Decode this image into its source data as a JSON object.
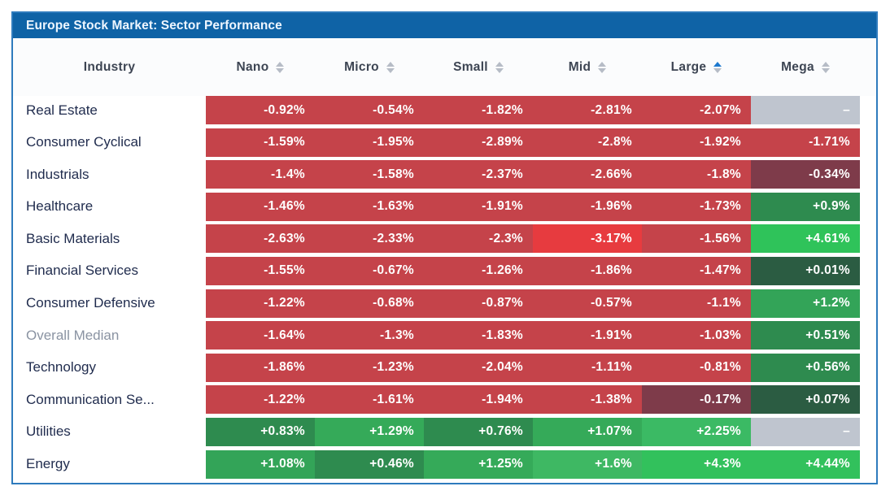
{
  "title": "Europe Stock Market: Sector Performance",
  "colors": {
    "title_bar": "#0f63a6",
    "widget_border": "#2e7bbd",
    "header_text": "#3d4553",
    "label_text": "#1f2b4d",
    "label_muted_text": "#8a93a2",
    "value_text": "#ffffff",
    "sort_arrow_inactive": "#b6bcc6",
    "sort_arrow_active": "#1d79cf",
    "red": "#c5434a",
    "red_bright": "#e73b3f",
    "maroon": "#7e3b4a",
    "gray_null": "#bfc5cf",
    "green_dark": "#2b5c42",
    "green_med": "#2e8b4f",
    "green_med2": "#33a458",
    "green_bright": "#3bba64",
    "green_brightest": "#32c15c"
  },
  "columns": [
    {
      "label": "Industry",
      "sortable": false,
      "sort": null
    },
    {
      "label": "Nano",
      "sortable": true,
      "sort": null
    },
    {
      "label": "Micro",
      "sortable": true,
      "sort": null
    },
    {
      "label": "Small",
      "sortable": true,
      "sort": null
    },
    {
      "label": "Mid",
      "sortable": true,
      "sort": null
    },
    {
      "label": "Large",
      "sortable": true,
      "sort": "asc"
    },
    {
      "label": "Mega",
      "sortable": true,
      "sort": null
    }
  ],
  "rows": [
    {
      "industry": "Real Estate",
      "muted": false,
      "cells": [
        {
          "v": "-0.92%",
          "bg": "#c5434a"
        },
        {
          "v": "-0.54%",
          "bg": "#c5434a"
        },
        {
          "v": "-1.82%",
          "bg": "#c5434a"
        },
        {
          "v": "-2.81%",
          "bg": "#c5434a"
        },
        {
          "v": "-2.07%",
          "bg": "#c5434a"
        },
        {
          "v": "–",
          "bg": "#bfc5cf"
        }
      ]
    },
    {
      "industry": "Consumer Cyclical",
      "muted": false,
      "cells": [
        {
          "v": "-1.59%",
          "bg": "#c5434a"
        },
        {
          "v": "-1.95%",
          "bg": "#c5434a"
        },
        {
          "v": "-2.89%",
          "bg": "#c5434a"
        },
        {
          "v": "-2.8%",
          "bg": "#c5434a"
        },
        {
          "v": "-1.92%",
          "bg": "#c5434a"
        },
        {
          "v": "-1.71%",
          "bg": "#c5434a"
        }
      ]
    },
    {
      "industry": "Industrials",
      "muted": false,
      "cells": [
        {
          "v": "-1.4%",
          "bg": "#c5434a"
        },
        {
          "v": "-1.58%",
          "bg": "#c5434a"
        },
        {
          "v": "-2.37%",
          "bg": "#c5434a"
        },
        {
          "v": "-2.66%",
          "bg": "#c5434a"
        },
        {
          "v": "-1.8%",
          "bg": "#c5434a"
        },
        {
          "v": "-0.34%",
          "bg": "#7e3b4a"
        }
      ]
    },
    {
      "industry": "Healthcare",
      "muted": false,
      "cells": [
        {
          "v": "-1.46%",
          "bg": "#c5434a"
        },
        {
          "v": "-1.63%",
          "bg": "#c5434a"
        },
        {
          "v": "-1.91%",
          "bg": "#c5434a"
        },
        {
          "v": "-1.96%",
          "bg": "#c5434a"
        },
        {
          "v": "-1.73%",
          "bg": "#c5434a"
        },
        {
          "v": "+0.9%",
          "bg": "#2e8b4f"
        }
      ]
    },
    {
      "industry": "Basic Materials",
      "muted": false,
      "cells": [
        {
          "v": "-2.63%",
          "bg": "#c5434a"
        },
        {
          "v": "-2.33%",
          "bg": "#c5434a"
        },
        {
          "v": "-2.3%",
          "bg": "#c5434a"
        },
        {
          "v": "-3.17%",
          "bg": "#e73b3f"
        },
        {
          "v": "-1.56%",
          "bg": "#c5434a"
        },
        {
          "v": "+4.61%",
          "bg": "#2fc35a"
        }
      ]
    },
    {
      "industry": "Financial Services",
      "muted": false,
      "cells": [
        {
          "v": "-1.55%",
          "bg": "#c5434a"
        },
        {
          "v": "-0.67%",
          "bg": "#c5434a"
        },
        {
          "v": "-1.26%",
          "bg": "#c5434a"
        },
        {
          "v": "-1.86%",
          "bg": "#c5434a"
        },
        {
          "v": "-1.47%",
          "bg": "#c5434a"
        },
        {
          "v": "+0.01%",
          "bg": "#2b5c42"
        }
      ]
    },
    {
      "industry": "Consumer Defensive",
      "muted": false,
      "cells": [
        {
          "v": "-1.22%",
          "bg": "#c5434a"
        },
        {
          "v": "-0.68%",
          "bg": "#c5434a"
        },
        {
          "v": "-0.87%",
          "bg": "#c5434a"
        },
        {
          "v": "-0.57%",
          "bg": "#c5434a"
        },
        {
          "v": "-1.1%",
          "bg": "#c5434a"
        },
        {
          "v": "+1.2%",
          "bg": "#33a458"
        }
      ]
    },
    {
      "industry": "Overall Median",
      "muted": true,
      "cells": [
        {
          "v": "-1.64%",
          "bg": "#c5434a"
        },
        {
          "v": "-1.3%",
          "bg": "#c5434a"
        },
        {
          "v": "-1.83%",
          "bg": "#c5434a"
        },
        {
          "v": "-1.91%",
          "bg": "#c5434a"
        },
        {
          "v": "-1.03%",
          "bg": "#c5434a"
        },
        {
          "v": "+0.51%",
          "bg": "#2e8b4f"
        }
      ]
    },
    {
      "industry": "Technology",
      "muted": false,
      "cells": [
        {
          "v": "-1.86%",
          "bg": "#c5434a"
        },
        {
          "v": "-1.23%",
          "bg": "#c5434a"
        },
        {
          "v": "-2.04%",
          "bg": "#c5434a"
        },
        {
          "v": "-1.11%",
          "bg": "#c5434a"
        },
        {
          "v": "-0.81%",
          "bg": "#c5434a"
        },
        {
          "v": "+0.56%",
          "bg": "#2e8b4f"
        }
      ]
    },
    {
      "industry": "Communication Se...",
      "muted": false,
      "cells": [
        {
          "v": "-1.22%",
          "bg": "#c5434a"
        },
        {
          "v": "-1.61%",
          "bg": "#c5434a"
        },
        {
          "v": "-1.94%",
          "bg": "#c5434a"
        },
        {
          "v": "-1.38%",
          "bg": "#c5434a"
        },
        {
          "v": "-0.17%",
          "bg": "#7e3b4a"
        },
        {
          "v": "+0.07%",
          "bg": "#2b5c42"
        }
      ]
    },
    {
      "industry": "Utilities",
      "muted": false,
      "cells": [
        {
          "v": "+0.83%",
          "bg": "#2e8b4f"
        },
        {
          "v": "+1.29%",
          "bg": "#35aa59"
        },
        {
          "v": "+0.76%",
          "bg": "#2e8b4f"
        },
        {
          "v": "+1.07%",
          "bg": "#35aa59"
        },
        {
          "v": "+2.25%",
          "bg": "#3bba64"
        },
        {
          "v": "–",
          "bg": "#bfc5cf"
        }
      ]
    },
    {
      "industry": "Energy",
      "muted": false,
      "cells": [
        {
          "v": "+1.08%",
          "bg": "#33a458"
        },
        {
          "v": "+0.46%",
          "bg": "#2e8b4f"
        },
        {
          "v": "+1.25%",
          "bg": "#35aa59"
        },
        {
          "v": "+1.6%",
          "bg": "#3eb863"
        },
        {
          "v": "+4.3%",
          "bg": "#32c15c"
        },
        {
          "v": "+4.44%",
          "bg": "#32c15c"
        }
      ]
    }
  ]
}
